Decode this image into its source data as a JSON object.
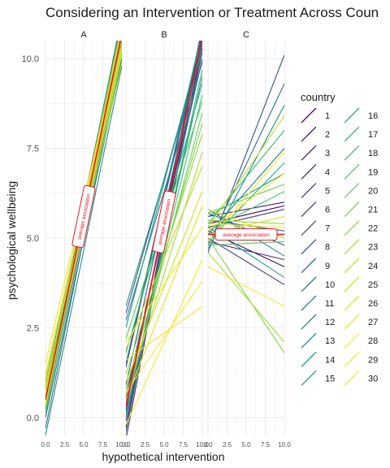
{
  "chart_data": {
    "type": "line",
    "title": "Considering an Intervention or Treatment Across Coun",
    "xlabel": "hypothetical intervention",
    "ylabel": "psychological wellbeing",
    "xlim": [
      0,
      10
    ],
    "ylim": [
      -0.5,
      10.5
    ],
    "x_ticks": [
      "0.0",
      "2.5",
      "5.0",
      "7.5",
      "10.0"
    ],
    "y_ticks": [
      "0.0",
      "2.5",
      "5.0",
      "7.5",
      "10.0"
    ],
    "grid": true,
    "legend_position": "right",
    "legend_title": "country",
    "countries": [
      "1",
      "2",
      "3",
      "4",
      "5",
      "6",
      "7",
      "8",
      "9",
      "10",
      "11",
      "12",
      "13",
      "14",
      "15",
      "16",
      "17",
      "18",
      "19",
      "20",
      "21",
      "22",
      "23",
      "24",
      "25",
      "26",
      "27",
      "28",
      "29",
      "30"
    ],
    "country_colors": [
      "#440154",
      "#471164",
      "#481f70",
      "#472d7b",
      "#443a83",
      "#404688",
      "#3b528b",
      "#365d8d",
      "#31688e",
      "#2c728e",
      "#287c8e",
      "#24868e",
      "#21908d",
      "#1f9a8a",
      "#20a386",
      "#29af7f",
      "#35b779",
      "#44bf70",
      "#56c667",
      "#6ccd5a",
      "#7fd34e",
      "#95d840",
      "#a8db34",
      "#bddf26",
      "#d2e21b",
      "#e5e419",
      "#f4e61e",
      "#fde725",
      "#fbe432",
      "#f6e230"
    ],
    "average_color": "#e8141c",
    "panels": [
      {
        "strip": "A",
        "annotation": "average association",
        "average_line": [
          [
            0,
            0.5
          ],
          [
            10,
            10.7
          ]
        ],
        "lines": [
          [
            [
              0,
              0.1
            ],
            [
              10,
              10.9
            ]
          ],
          [
            [
              0,
              0.4
            ],
            [
              10,
              10.8
            ]
          ],
          [
            [
              0,
              0.7
            ],
            [
              10,
              11.0
            ]
          ],
          [
            [
              0,
              0.3
            ],
            [
              10,
              10.4
            ]
          ],
          [
            [
              0,
              0.6
            ],
            [
              10,
              10.6
            ]
          ],
          [
            [
              0,
              0.2
            ],
            [
              10,
              10.2
            ]
          ],
          [
            [
              0,
              0.9
            ],
            [
              10,
              11.1
            ]
          ],
          [
            [
              0,
              0.5
            ],
            [
              10,
              10.9
            ]
          ],
          [
            [
              0,
              0.0
            ],
            [
              10,
              10.0
            ]
          ],
          [
            [
              0,
              -0.3
            ],
            [
              10,
              10.3
            ]
          ],
          [
            [
              0,
              0.8
            ],
            [
              10,
              10.5
            ]
          ],
          [
            [
              0,
              0.4
            ],
            [
              10,
              10.1
            ]
          ],
          [
            [
              0,
              -0.5
            ],
            [
              10,
              9.8
            ]
          ],
          [
            [
              0,
              0.6
            ],
            [
              10,
              11.2
            ]
          ],
          [
            [
              0,
              0.2
            ],
            [
              10,
              10.7
            ]
          ],
          [
            [
              0,
              0.9
            ],
            [
              10,
              10.8
            ]
          ],
          [
            [
              0,
              0.3
            ],
            [
              10,
              10.5
            ]
          ],
          [
            [
              0,
              0.7
            ],
            [
              10,
              10.3
            ]
          ],
          [
            [
              0,
              1.0
            ],
            [
              10,
              10.9
            ]
          ],
          [
            [
              0,
              0.1
            ],
            [
              10,
              10.6
            ]
          ],
          [
            [
              0,
              0.5
            ],
            [
              10,
              10.2
            ]
          ],
          [
            [
              0,
              0.8
            ],
            [
              10,
              11.0
            ]
          ],
          [
            [
              0,
              0.6
            ],
            [
              10,
              9.9
            ]
          ],
          [
            [
              0,
              0.3
            ],
            [
              10,
              10.8
            ]
          ],
          [
            [
              0,
              1.2
            ],
            [
              10,
              10.4
            ]
          ],
          [
            [
              0,
              0.7
            ],
            [
              10,
              10.1
            ]
          ],
          [
            [
              0,
              1.5
            ],
            [
              10,
              10.6
            ]
          ],
          [
            [
              0,
              0.4
            ],
            [
              10,
              10.9
            ]
          ],
          [
            [
              0,
              0.9
            ],
            [
              10,
              10.3
            ]
          ],
          [
            [
              0,
              1.1
            ],
            [
              10,
              10.7
            ]
          ]
        ]
      },
      {
        "strip": "B",
        "annotation": "average association",
        "average_line": [
          [
            0,
            0.3
          ],
          [
            10,
            10.6
          ]
        ],
        "lines": [
          [
            [
              0,
              -0.3
            ],
            [
              10,
              10.8
            ]
          ],
          [
            [
              0,
              0.5
            ],
            [
              10,
              10.3
            ]
          ],
          [
            [
              0,
              -0.6
            ],
            [
              10,
              10.5
            ]
          ],
          [
            [
              0,
              0.2
            ],
            [
              10,
              10.9
            ]
          ],
          [
            [
              0,
              1.4
            ],
            [
              10,
              10.7
            ]
          ],
          [
            [
              0,
              -0.1
            ],
            [
              10,
              10.2
            ]
          ],
          [
            [
              0,
              2.9
            ],
            [
              10,
              10.4
            ]
          ],
          [
            [
              0,
              0.6
            ],
            [
              10,
              10.0
            ]
          ],
          [
            [
              0,
              0.9
            ],
            [
              10,
              10.6
            ]
          ],
          [
            [
              0,
              2.7
            ],
            [
              10,
              9.9
            ]
          ],
          [
            [
              0,
              -0.4
            ],
            [
              10,
              10.5
            ]
          ],
          [
            [
              0,
              1.5
            ],
            [
              10,
              10.8
            ]
          ],
          [
            [
              0,
              0.1
            ],
            [
              10,
              9.5
            ]
          ],
          [
            [
              0,
              3.1
            ],
            [
              10,
              10.2
            ]
          ],
          [
            [
              0,
              2.5
            ],
            [
              10,
              10.6
            ]
          ],
          [
            [
              0,
              0.0
            ],
            [
              10,
              9.7
            ]
          ],
          [
            [
              0,
              1.8
            ],
            [
              10,
              9.3
            ]
          ],
          [
            [
              0,
              0.3
            ],
            [
              10,
              9.0
            ]
          ],
          [
            [
              0,
              2.2
            ],
            [
              10,
              8.8
            ]
          ],
          [
            [
              0,
              0.4
            ],
            [
              10,
              8.5
            ]
          ],
          [
            [
              0,
              0.8
            ],
            [
              10,
              8.2
            ]
          ],
          [
            [
              0,
              1.2
            ],
            [
              10,
              7.9
            ]
          ],
          [
            [
              0,
              0.6
            ],
            [
              10,
              7.4
            ]
          ],
          [
            [
              0,
              1.9
            ],
            [
              10,
              7.0
            ]
          ],
          [
            [
              0,
              1.0
            ],
            [
              10,
              6.3
            ]
          ],
          [
            [
              0,
              0.5
            ],
            [
              10,
              5.9
            ]
          ],
          [
            [
              0,
              2.1
            ],
            [
              10,
              5.3
            ]
          ],
          [
            [
              0,
              -0.2
            ],
            [
              10,
              4.4
            ]
          ],
          [
            [
              0,
              0.7
            ],
            [
              10,
              3.8
            ]
          ],
          [
            [
              0,
              1.6
            ],
            [
              10,
              3.1
            ]
          ]
        ]
      },
      {
        "strip": "C",
        "annotation": "average association",
        "average_line": [
          [
            0,
            5.1
          ],
          [
            10,
            5.1
          ]
        ],
        "lines": [
          [
            [
              0,
              5.4
            ],
            [
              10,
              5.9
            ]
          ],
          [
            [
              0,
              5.2
            ],
            [
              10,
              4.2
            ]
          ],
          [
            [
              0,
              5.6
            ],
            [
              10,
              6.0
            ]
          ],
          [
            [
              0,
              4.9
            ],
            [
              10,
              4.4
            ]
          ],
          [
            [
              0,
              5.3
            ],
            [
              10,
              5.8
            ]
          ],
          [
            [
              0,
              5.0
            ],
            [
              10,
              3.7
            ]
          ],
          [
            [
              0,
              4.6
            ],
            [
              10,
              10.1
            ]
          ],
          [
            [
              0,
              5.5
            ],
            [
              10,
              5.2
            ]
          ],
          [
            [
              0,
              5.7
            ],
            [
              10,
              4.8
            ]
          ],
          [
            [
              0,
              4.8
            ],
            [
              10,
              9.3
            ]
          ],
          [
            [
              0,
              5.1
            ],
            [
              10,
              7.5
            ]
          ],
          [
            [
              0,
              5.8
            ],
            [
              10,
              4.5
            ]
          ],
          [
            [
              0,
              4.7
            ],
            [
              10,
              8.7
            ]
          ],
          [
            [
              0,
              5.3
            ],
            [
              10,
              3.9
            ]
          ],
          [
            [
              0,
              5.6
            ],
            [
              10,
              6.8
            ]
          ],
          [
            [
              0,
              4.9
            ],
            [
              10,
              7.1
            ]
          ],
          [
            [
              0,
              5.4
            ],
            [
              10,
              8.0
            ]
          ],
          [
            [
              0,
              5.2
            ],
            [
              10,
              6.3
            ]
          ],
          [
            [
              0,
              4.8
            ],
            [
              10,
              4.9
            ]
          ],
          [
            [
              0,
              5.7
            ],
            [
              10,
              6.5
            ]
          ],
          [
            [
              0,
              5.0
            ],
            [
              10,
              1.8
            ]
          ],
          [
            [
              0,
              5.5
            ],
            [
              10,
              5.4
            ]
          ],
          [
            [
              0,
              4.6
            ],
            [
              10,
              2.1
            ]
          ],
          [
            [
              0,
              5.3
            ],
            [
              10,
              8.4
            ]
          ],
          [
            [
              0,
              5.1
            ],
            [
              10,
              5.6
            ]
          ],
          [
            [
              0,
              5.8
            ],
            [
              10,
              5.0
            ]
          ],
          [
            [
              0,
              4.9
            ],
            [
              10,
              7.4
            ]
          ],
          [
            [
              0,
              5.2
            ],
            [
              10,
              6.8
            ]
          ],
          [
            [
              0,
              4.2
            ],
            [
              10,
              3.1
            ]
          ],
          [
            [
              0,
              5.4
            ],
            [
              10,
              5.3
            ]
          ]
        ]
      }
    ]
  }
}
